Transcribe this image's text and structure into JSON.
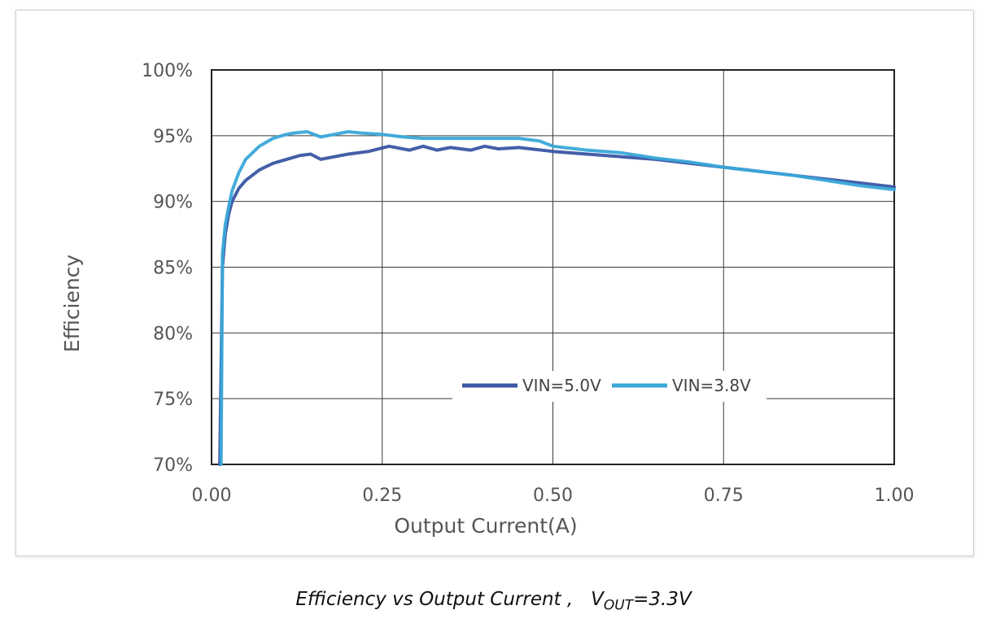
{
  "chart_data": {
    "type": "line",
    "xlabel": "Output Current(A)",
    "ylabel": "Efficiency",
    "xlim": [
      0,
      1.0
    ],
    "ylim": [
      70,
      100
    ],
    "x_ticks": [
      "0.00",
      "0.25",
      "0.50",
      "0.75",
      "1.00"
    ],
    "y_ticks": [
      "70%",
      "75%",
      "80%",
      "85%",
      "90%",
      "95%",
      "100%"
    ],
    "grid": true,
    "legend_position": "inside-lower-center",
    "series": [
      {
        "name": "VIN=5.0V",
        "color": "#3a56a4",
        "x": [
          0.012,
          0.016,
          0.02,
          0.025,
          0.03,
          0.04,
          0.05,
          0.07,
          0.09,
          0.11,
          0.13,
          0.145,
          0.16,
          0.18,
          0.2,
          0.23,
          0.26,
          0.29,
          0.31,
          0.33,
          0.35,
          0.38,
          0.4,
          0.42,
          0.45,
          0.5,
          0.55,
          0.6,
          0.65,
          0.7,
          0.75,
          0.8,
          0.85,
          0.9,
          0.95,
          1.0
        ],
        "y": [
          70.0,
          85.0,
          87.5,
          89.0,
          90.0,
          91.0,
          91.6,
          92.4,
          92.9,
          93.2,
          93.5,
          93.6,
          93.2,
          93.4,
          93.6,
          93.8,
          94.2,
          93.9,
          94.2,
          93.9,
          94.1,
          93.9,
          94.2,
          94.0,
          94.1,
          93.8,
          93.6,
          93.4,
          93.2,
          92.9,
          92.6,
          92.3,
          92.0,
          91.7,
          91.4,
          91.1
        ]
      },
      {
        "name": "VIN=3.8V",
        "color": "#3aa8d8",
        "x": [
          0.014,
          0.016,
          0.02,
          0.025,
          0.03,
          0.04,
          0.05,
          0.07,
          0.09,
          0.11,
          0.12,
          0.14,
          0.16,
          0.18,
          0.2,
          0.22,
          0.25,
          0.28,
          0.31,
          0.35,
          0.38,
          0.4,
          0.45,
          0.48,
          0.5,
          0.55,
          0.6,
          0.65,
          0.7,
          0.75,
          0.8,
          0.85,
          0.9,
          0.95,
          1.0
        ],
        "y": [
          70.0,
          86.0,
          88.2,
          89.6,
          90.8,
          92.2,
          93.2,
          94.2,
          94.8,
          95.1,
          95.2,
          95.3,
          94.9,
          95.1,
          95.3,
          95.2,
          95.1,
          94.9,
          94.8,
          94.8,
          94.8,
          94.8,
          94.8,
          94.6,
          94.2,
          93.9,
          93.7,
          93.3,
          93.0,
          92.6,
          92.3,
          92.0,
          91.6,
          91.2,
          90.9
        ]
      }
    ]
  },
  "caption": {
    "prefix": "Efficiency vs Output Current ,",
    "v": "V",
    "sub": "OUT",
    "suffix": "=3.3V"
  }
}
